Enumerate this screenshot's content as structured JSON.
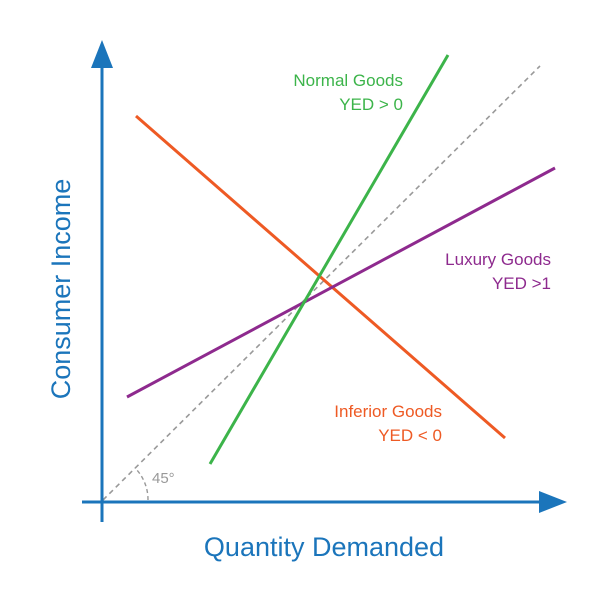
{
  "axes": {
    "y_title": "Consumer  Income",
    "x_title": "Quantity Demanded",
    "color": "#1b75bb"
  },
  "reference_line": {
    "angle_label": "45°",
    "color": "#999999"
  },
  "curves": [
    {
      "key": "normal",
      "name": "Normal Goods",
      "condition": "YED > 0",
      "color": "#3cb44a"
    },
    {
      "key": "luxury",
      "name": "Luxury Goods",
      "condition": "YED >1",
      "color": "#8e2a8e"
    },
    {
      "key": "inferior",
      "name": "Inferior Goods",
      "condition": "YED < 0",
      "color": "#ee5a24"
    }
  ]
}
